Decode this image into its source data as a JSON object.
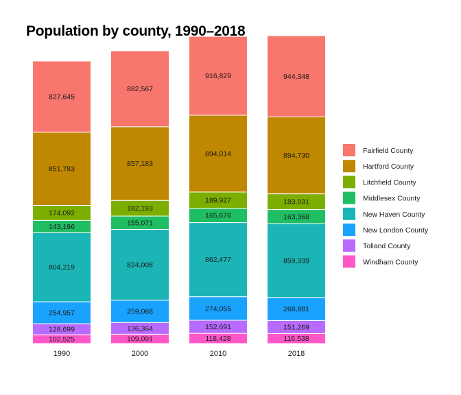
{
  "chart_data": {
    "type": "bar",
    "stacked": true,
    "title": "Population by county, 1990–2018",
    "xlabel": "",
    "ylabel": "",
    "grid": false,
    "legend_position": "right",
    "categories": [
      "1990",
      "2000",
      "2010",
      "2018"
    ],
    "series": [
      {
        "name": "Fairfield County",
        "color": "#F8766D",
        "values": [
          827645,
          882567,
          916829,
          944348
        ]
      },
      {
        "name": "Hartford County",
        "color": "#C08800",
        "values": [
          851783,
          857183,
          894014,
          894730
        ]
      },
      {
        "name": "Litchfield County",
        "color": "#7CAE00",
        "values": [
          174092,
          182193,
          189927,
          183031
        ]
      },
      {
        "name": "Middlesex County",
        "color": "#1FBE63",
        "values": [
          143196,
          155071,
          165676,
          163368
        ]
      },
      {
        "name": "New Haven County",
        "color": "#1BB5B5",
        "values": [
          804219,
          824008,
          862477,
          859339
        ]
      },
      {
        "name": "New London County",
        "color": "#19A3FF",
        "values": [
          254957,
          259088,
          274055,
          268881
        ]
      },
      {
        "name": "Tolland County",
        "color": "#B86BFF",
        "values": [
          128699,
          136364,
          152691,
          151269
        ]
      },
      {
        "name": "Windham County",
        "color": "#FF57C8",
        "values": [
          102525,
          109091,
          118428,
          116538
        ]
      }
    ]
  }
}
